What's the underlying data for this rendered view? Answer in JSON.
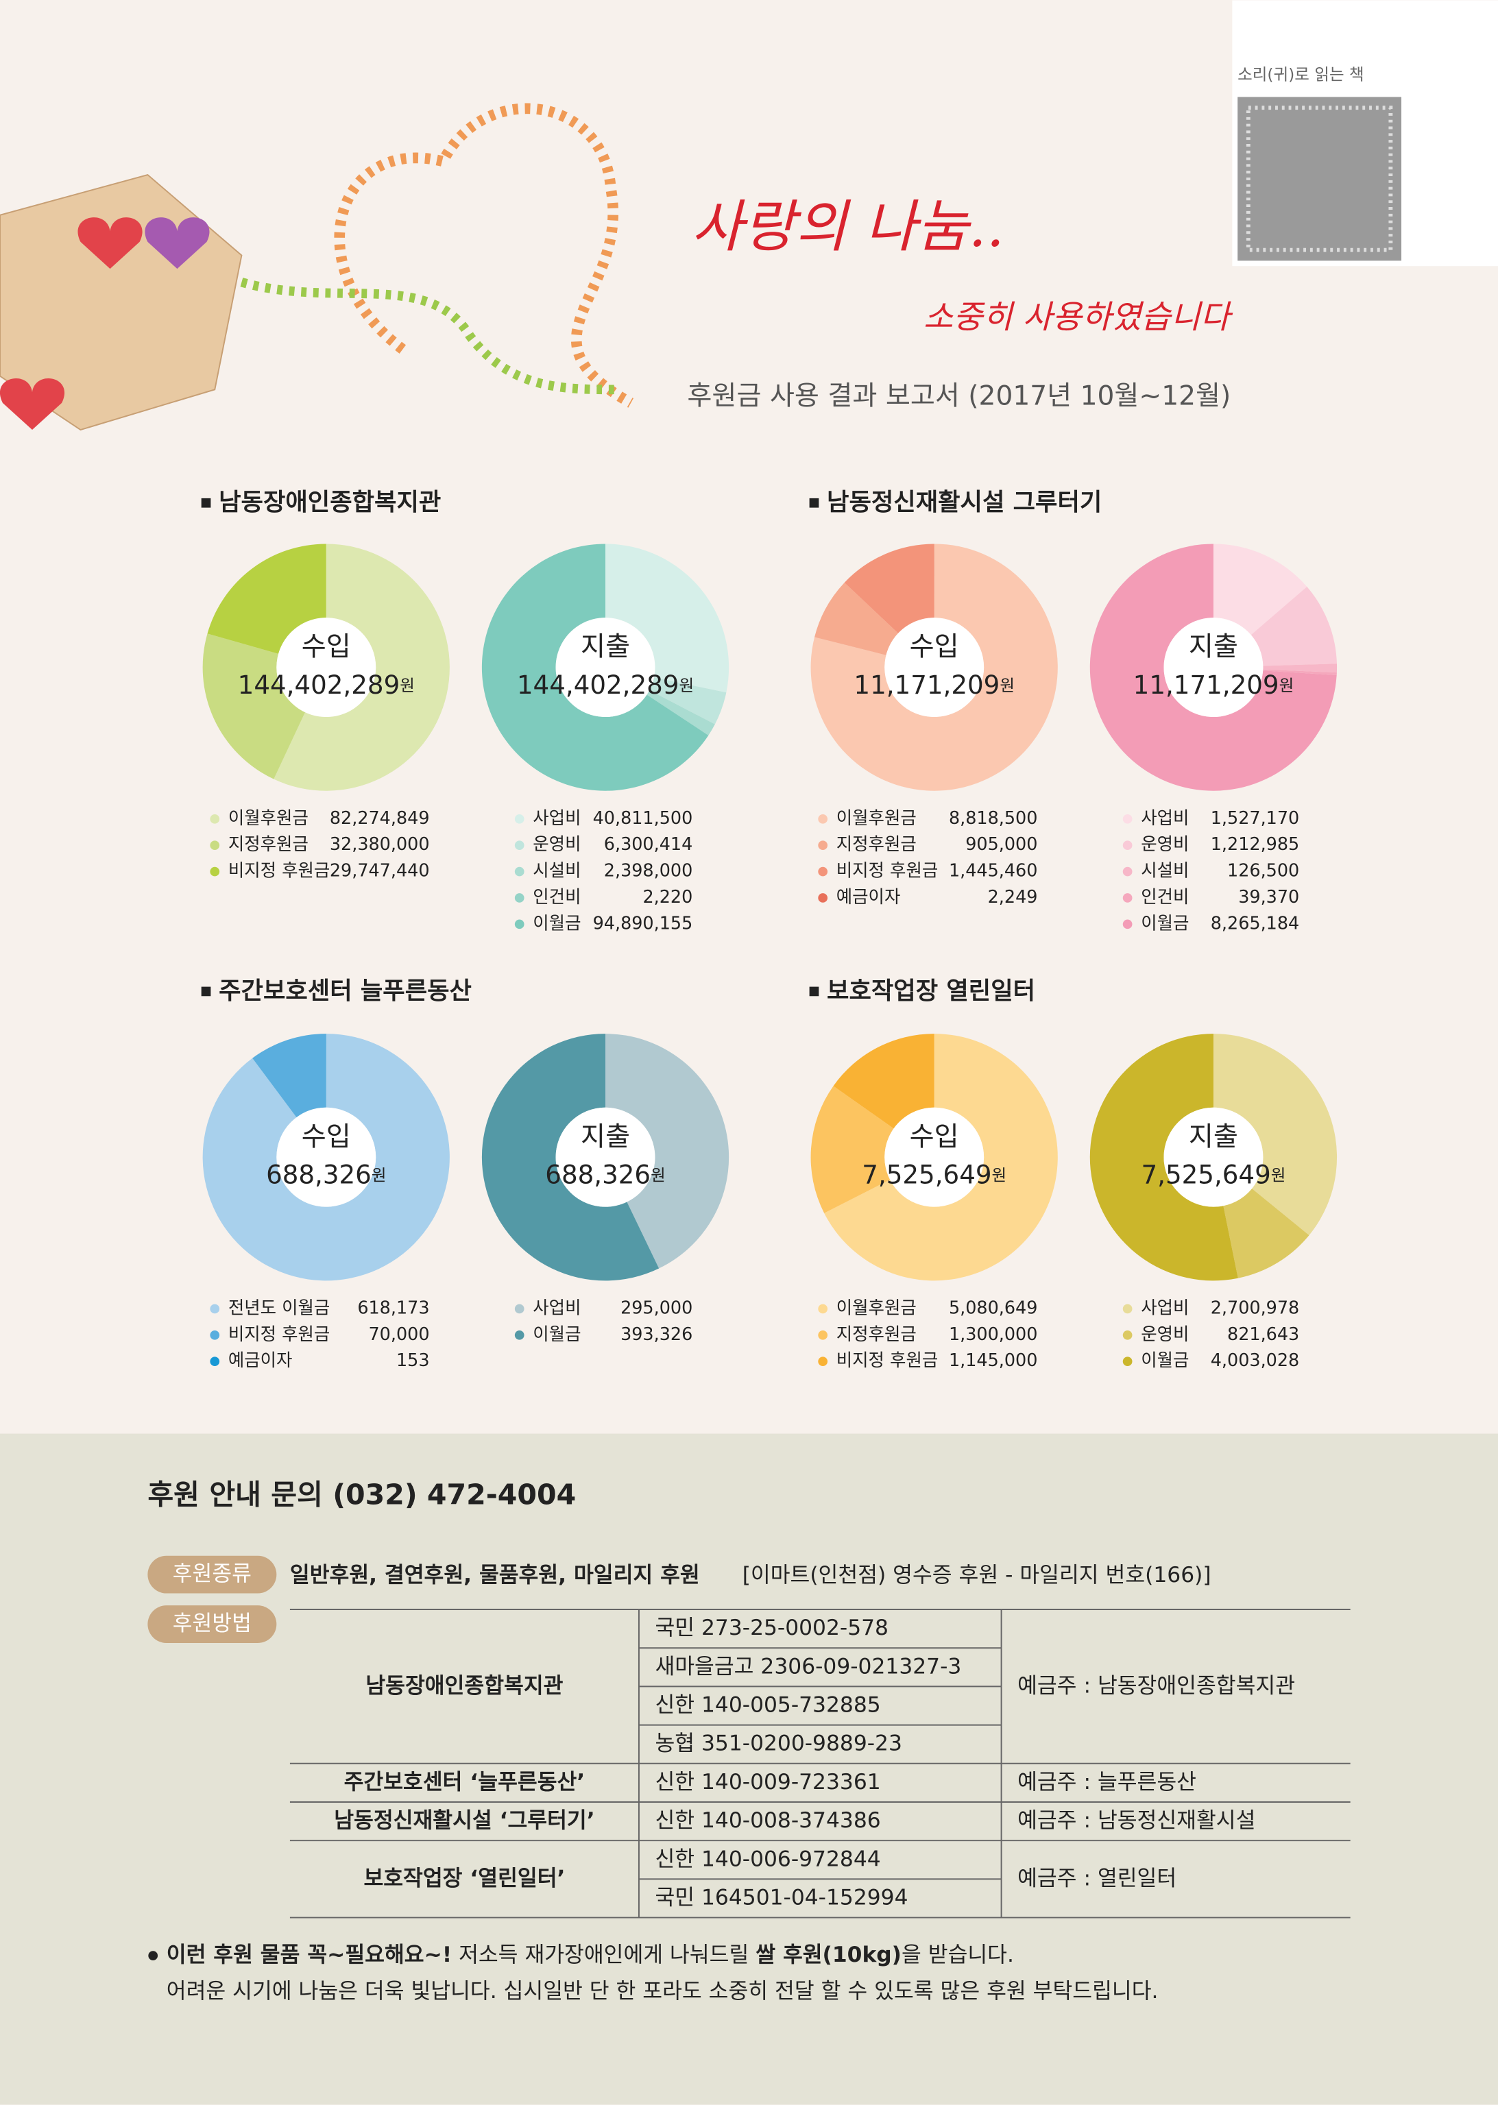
{
  "header": {
    "title": "사랑의 나눔..",
    "subtitle": "소중히 사용하였습니다",
    "report": "후원금 사용 결과 보고서 (2017년 10월~12월)",
    "audio_book": "소리(귀)로 읽는 책"
  },
  "sections": [
    "남동장애인종합복지관",
    "남동정신재활시설 그루터기",
    "주간보호센터 늘푸른동산",
    "보호작업장 열린일터"
  ],
  "chart_data": [
    {
      "type": "donut",
      "title": "수입",
      "total": "144,402,289",
      "unit": "원",
      "categories": [
        "이월후원금",
        "지정후원금",
        "비지정 후원금"
      ],
      "values": [
        82274849,
        32380000,
        29747440
      ],
      "value_labels": [
        "82,274,849",
        "32,380,000",
        "29,747,440"
      ],
      "colors": [
        "#dde8b0",
        "#c9dc82",
        "#b7d142"
      ]
    },
    {
      "type": "donut",
      "title": "지출",
      "total": "144,402,289",
      "unit": "원",
      "categories": [
        "사업비",
        "운영비",
        "시설비",
        "인건비",
        "이월금"
      ],
      "values": [
        40811500,
        6300414,
        2398000,
        2220,
        94890155
      ],
      "value_labels": [
        "40,811,500",
        "6,300,414",
        "2,398,000",
        "2,220",
        "94,890,155"
      ],
      "colors": [
        "#d6efe9",
        "#c0e5dd",
        "#aadcd1",
        "#95d3c7",
        "#7ecbbd"
      ]
    },
    {
      "type": "donut",
      "title": "수입",
      "total": "11,171,209",
      "unit": "원",
      "categories": [
        "이월후원금",
        "지정후원금",
        "비지정 후원금",
        "예금이자"
      ],
      "values": [
        8818500,
        905000,
        1445460,
        2249
      ],
      "value_labels": [
        "8,818,500",
        "905,000",
        "1,445,460",
        "2,249"
      ],
      "colors": [
        "#fbc8b0",
        "#f6ab8f",
        "#f3947a",
        "#e8705a"
      ]
    },
    {
      "type": "donut",
      "title": "지출",
      "total": "11,171,209",
      "unit": "원",
      "categories": [
        "사업비",
        "운영비",
        "시설비",
        "인건비",
        "이월금"
      ],
      "values": [
        1527170,
        1212985,
        126500,
        39370,
        8265184
      ],
      "value_labels": [
        "1,527,170",
        "1,212,985",
        "126,500",
        "39,370",
        "8,265,184"
      ],
      "colors": [
        "#fcdde5",
        "#f9cad7",
        "#f7b7c8",
        "#f5a8bd",
        "#f39cb6"
      ]
    },
    {
      "type": "donut",
      "title": "수입",
      "total": "688,326",
      "unit": "원",
      "categories": [
        "전년도 이월금",
        "비지정 후원금",
        "예금이자"
      ],
      "values": [
        618173,
        70000,
        153
      ],
      "value_labels": [
        "618,173",
        "70,000",
        "153"
      ],
      "colors": [
        "#a8d0ec",
        "#5aaede",
        "#1898d5"
      ]
    },
    {
      "type": "donut",
      "title": "지출",
      "total": "688,326",
      "unit": "원",
      "categories": [
        "사업비",
        "이월금"
      ],
      "values": [
        295000,
        393326
      ],
      "value_labels": [
        "295,000",
        "393,326"
      ],
      "colors": [
        "#b1c9d0",
        "#5499a6"
      ]
    },
    {
      "type": "donut",
      "title": "수입",
      "total": "7,525,649",
      "unit": "원",
      "categories": [
        "이월후원금",
        "지정후원금",
        "비지정 후원금"
      ],
      "values": [
        5080649,
        1300000,
        1145000
      ],
      "value_labels": [
        "5,080,649",
        "1,300,000",
        "1,145,000"
      ],
      "colors": [
        "#fdd991",
        "#fcc460",
        "#f9b234"
      ]
    },
    {
      "type": "donut",
      "title": "지출",
      "total": "7,525,649",
      "unit": "원",
      "categories": [
        "사업비",
        "운영비",
        "이월금"
      ],
      "values": [
        2700978,
        821643,
        4003028
      ],
      "value_labels": [
        "2,700,978",
        "821,643",
        "4,003,028"
      ],
      "colors": [
        "#e8dc99",
        "#dcc962",
        "#cbb62b"
      ]
    }
  ],
  "contact": {
    "title": "후원 안내 문의 (032) 472-4004",
    "kind_label": "후원종류",
    "kinds": "일반후원, 결연후원, 물품후원, 마일리지 후원",
    "kinds_note": "[이마트(인천점) 영수증 후원 - 마일리지 번호(166)]",
    "method_label": "후원방법",
    "table": {
      "rows": [
        {
          "org": "남동장애인종합복지관",
          "accounts": [
            "국민 273-25-0002-578",
            "새마을금고  2306-09-021327-3",
            "신한 140-005-732885",
            "농협 351-0200-9889-23"
          ],
          "holder": "예금주 : 남동장애인종합복지관"
        },
        {
          "org": "주간보호센터 ‘늘푸른동산’",
          "accounts": [
            "신한 140-009-723361"
          ],
          "holder": "예금주 : 늘푸른동산"
        },
        {
          "org": "남동정신재활시설 ‘그루터기’",
          "accounts": [
            "신한 140-008-374386"
          ],
          "holder": "예금주 : 남동정신재활시설"
        },
        {
          "org": "보호작업장 ‘열린일터’",
          "accounts": [
            "신한 140-006-972844",
            "국민 164501-04-152994"
          ],
          "holder": "예금주 : 열린일터"
        }
      ]
    },
    "notice": {
      "bold1": "이런 후원 물품 꼭~필요해요~!",
      "text1": " 저소득 재가장애인에게 나눠드릴 ",
      "bold2": "쌀 후원(10kg)",
      "text2": "을 받습니다.",
      "line2": "어려운 시기에 나눔은 더욱 빛납니다. 십시일반 단 한 포라도 소중히 전달 할 수 있도록 많은 후원 부탁드립니다."
    }
  }
}
